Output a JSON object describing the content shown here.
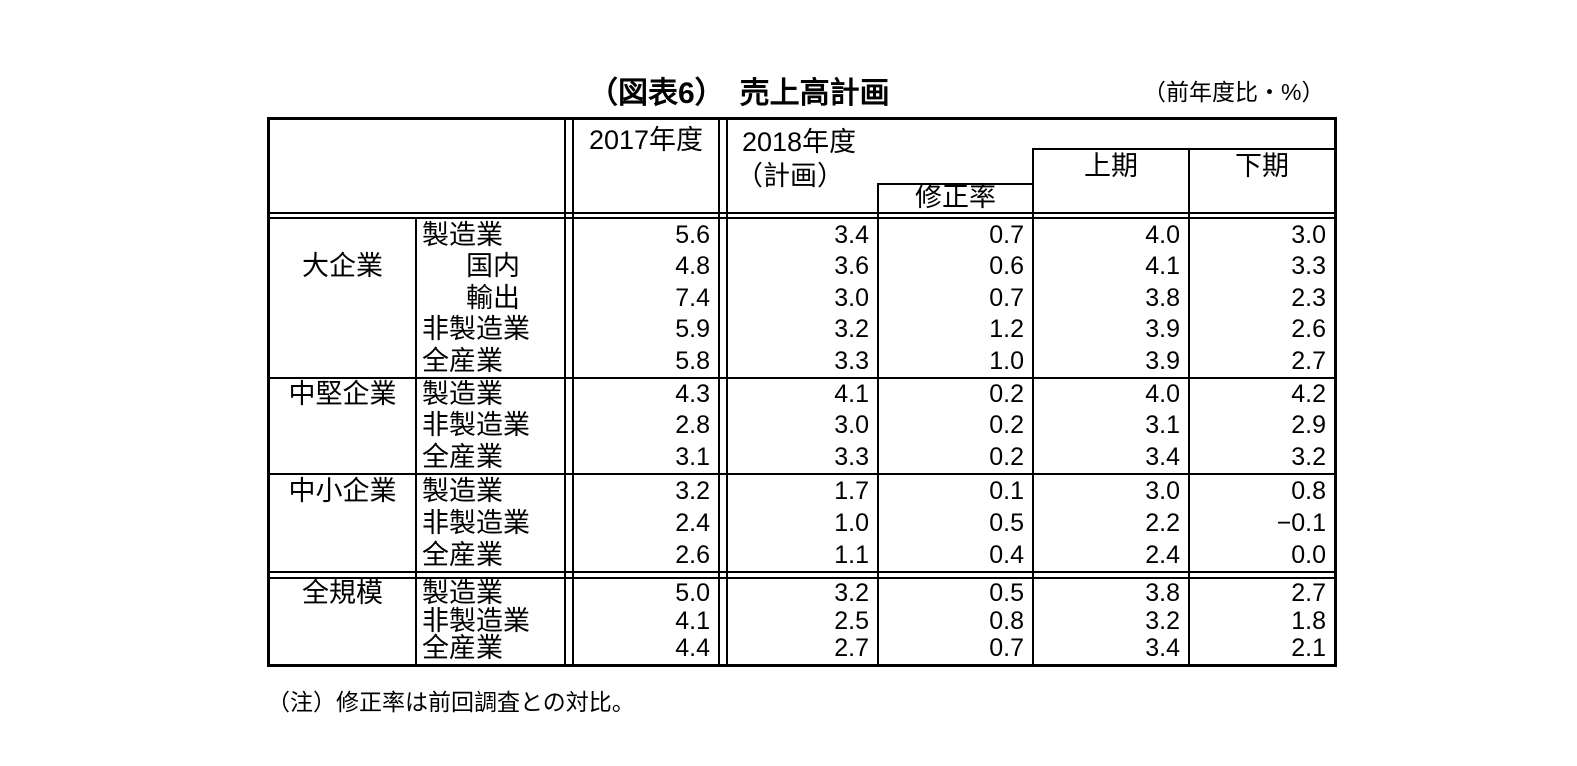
{
  "figure": {
    "title": "（図表6）　売上高計画",
    "unit_label": "（前年度比・%）",
    "note": "（注）修正率は前回調査との対比。"
  },
  "table": {
    "header": {
      "fy2017": "2017年度",
      "fy2018_line1": "2018年度",
      "fy2018_line2": "（計画）",
      "revision": "修正率",
      "first_half": "上期",
      "second_half": "下期"
    },
    "columns": [
      "2017年度",
      "2018年度（計画）",
      "修正率",
      "上期",
      "下期"
    ],
    "sections": [
      {
        "group": "大企業",
        "rows": [
          {
            "label": "製造業",
            "indent": false,
            "values": [
              "5.6",
              "3.4",
              "0.7",
              "4.0",
              "3.0"
            ]
          },
          {
            "label": "国内",
            "indent": true,
            "values": [
              "4.8",
              "3.6",
              "0.6",
              "4.1",
              "3.3"
            ]
          },
          {
            "label": "輸出",
            "indent": true,
            "values": [
              "7.4",
              "3.0",
              "0.7",
              "3.8",
              "2.3"
            ]
          },
          {
            "label": "非製造業",
            "indent": false,
            "values": [
              "5.9",
              "3.2",
              "1.2",
              "3.9",
              "2.6"
            ]
          },
          {
            "label": "全産業",
            "indent": false,
            "values": [
              "5.8",
              "3.3",
              "1.0",
              "3.9",
              "2.7"
            ]
          }
        ]
      },
      {
        "group": "中堅企業",
        "rows": [
          {
            "label": "製造業",
            "indent": false,
            "values": [
              "4.3",
              "4.1",
              "0.2",
              "4.0",
              "4.2"
            ]
          },
          {
            "label": "非製造業",
            "indent": false,
            "values": [
              "2.8",
              "3.0",
              "0.2",
              "3.1",
              "2.9"
            ]
          },
          {
            "label": "全産業",
            "indent": false,
            "values": [
              "3.1",
              "3.3",
              "0.2",
              "3.4",
              "3.2"
            ]
          }
        ]
      },
      {
        "group": "中小企業",
        "rows": [
          {
            "label": "製造業",
            "indent": false,
            "values": [
              "3.2",
              "1.7",
              "0.1",
              "3.0",
              "0.8"
            ]
          },
          {
            "label": "非製造業",
            "indent": false,
            "values": [
              "2.4",
              "1.0",
              "0.5",
              "2.2",
              "−0.1"
            ]
          },
          {
            "label": "全産業",
            "indent": false,
            "values": [
              "2.6",
              "1.1",
              "0.4",
              "2.4",
              "0.0"
            ]
          }
        ]
      },
      {
        "group": "全規模",
        "rows": [
          {
            "label": "製造業",
            "indent": false,
            "values": [
              "5.0",
              "3.2",
              "0.5",
              "3.8",
              "2.7"
            ]
          },
          {
            "label": "非製造業",
            "indent": false,
            "values": [
              "4.1",
              "2.5",
              "0.8",
              "3.2",
              "1.8"
            ]
          },
          {
            "label": "全産業",
            "indent": false,
            "values": [
              "4.4",
              "2.7",
              "0.7",
              "3.4",
              "2.1"
            ]
          }
        ]
      }
    ]
  }
}
